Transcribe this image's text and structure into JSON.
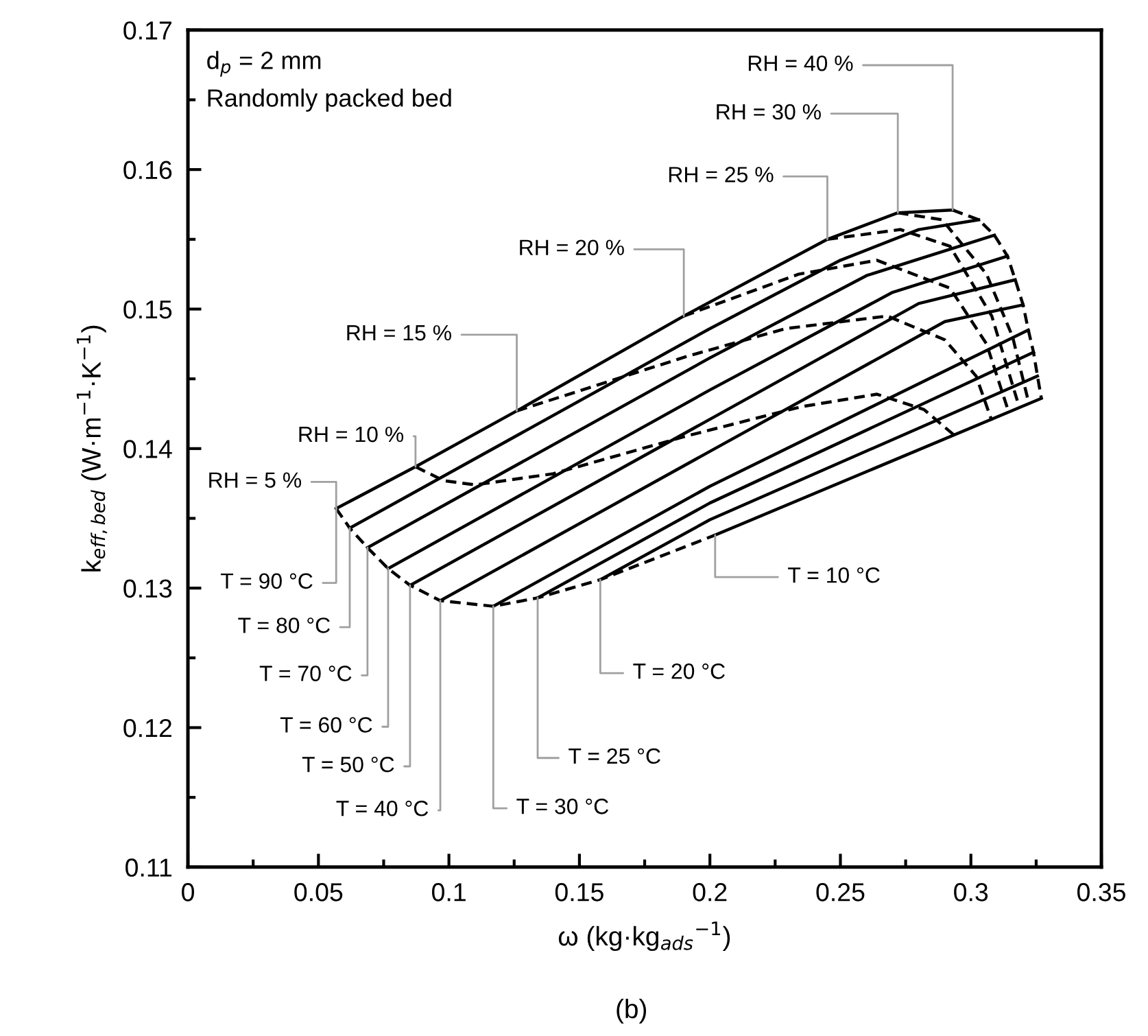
{
  "chart_data": {
    "type": "line",
    "xlabel": "ω (kg·kg$_{ads}$$^{−1}$)",
    "ylabel": "k$_{eff,bed}$ (W·m$^{−1}$·K$^{−1}$)",
    "annotations": [
      "d$_{p}$ = 2 mm",
      "Randomly packed bed",
      "(b)"
    ],
    "xlim": [
      0,
      0.35
    ],
    "xticks": [
      0,
      0.05,
      0.1,
      0.15,
      0.2,
      0.25,
      0.3,
      0.35
    ],
    "ylim": [
      0.11,
      0.17
    ],
    "yticks": [
      0.11,
      0.12,
      0.13,
      0.14,
      0.15,
      0.16,
      0.17
    ],
    "grid": false,
    "legend": false,
    "marker": "none",
    "series": [
      {
        "name": "T = 90 °C",
        "color": "#000000",
        "line_style": "solid",
        "x": [
          0.0568,
          0.0872,
          0.126,
          0.19,
          0.245,
          0.272,
          0.293
        ],
        "values": [
          0.1357,
          0.1387,
          0.1427,
          0.1495,
          0.155,
          0.1569,
          0.1571
        ]
      },
      {
        "name": "T = 80 °C",
        "color": "#000000",
        "line_style": "solid",
        "x": [
          0.062,
          0.2,
          0.25,
          0.28,
          0.303
        ],
        "values": [
          0.1343,
          0.1486,
          0.1535,
          0.1557,
          0.1564
        ]
      },
      {
        "name": "T = 70 °C",
        "color": "#000000",
        "line_style": "solid",
        "x": [
          0.0688,
          0.2,
          0.26,
          0.309
        ],
        "values": [
          0.1329,
          0.1465,
          0.1524,
          0.1553
        ]
      },
      {
        "name": "T = 60 °C",
        "color": "#000000",
        "line_style": "solid",
        "x": [
          0.0767,
          0.2,
          0.27,
          0.314
        ],
        "values": [
          0.1314,
          0.1442,
          0.1512,
          0.1538
        ]
      },
      {
        "name": "T = 50 °C",
        "color": "#000000",
        "line_style": "solid",
        "x": [
          0.0851,
          0.2,
          0.28,
          0.317
        ],
        "values": [
          0.1302,
          0.1421,
          0.1504,
          0.1521
        ]
      },
      {
        "name": "T = 40 °C",
        "color": "#000000",
        "line_style": "solid",
        "x": [
          0.0967,
          0.2,
          0.29,
          0.32
        ],
        "values": [
          0.1291,
          0.1398,
          0.1491,
          0.1503
        ]
      },
      {
        "name": "T = 30 °C",
        "color": "#000000",
        "line_style": "solid",
        "x": [
          0.117,
          0.2,
          0.322
        ],
        "values": [
          0.1287,
          0.1373,
          0.1485
        ]
      },
      {
        "name": "T = 25 °C",
        "color": "#000000",
        "line_style": "solid",
        "x": [
          0.134,
          0.2,
          0.324
        ],
        "values": [
          0.1293,
          0.1361,
          0.1469
        ]
      },
      {
        "name": "T = 20 °C",
        "color": "#000000",
        "line_style": "solid",
        "x": [
          0.158,
          0.2,
          0.3255
        ],
        "values": [
          0.1306,
          0.1349,
          0.1452
        ]
      },
      {
        "name": "T = 10 °C",
        "color": "#000000",
        "line_style": "solid",
        "x": [
          0.202,
          0.327
        ],
        "values": [
          0.1338,
          0.1436
        ]
      },
      {
        "name": "RH = 5 %",
        "color": "#000000",
        "line_style": "dashed",
        "x": [
          0.0568,
          0.062,
          0.0688,
          0.0767,
          0.0851,
          0.0967,
          0.117,
          0.134,
          0.158,
          0.202
        ],
        "values": [
          0.1357,
          0.1343,
          0.1329,
          0.1314,
          0.1302,
          0.1291,
          0.1287,
          0.1293,
          0.1306,
          0.1338
        ]
      },
      {
        "name": "RH = 10 %",
        "color": "#000000",
        "line_style": "dashed",
        "x": [
          0.0872,
          0.098,
          0.11,
          0.14,
          0.191,
          0.235,
          0.264,
          0.282,
          0.294
        ],
        "values": [
          0.1387,
          0.1377,
          0.1374,
          0.1382,
          0.1409,
          0.143,
          0.1439,
          0.1428,
          0.1409
        ]
      },
      {
        "name": "RH = 15 %",
        "color": "#000000",
        "line_style": "dashed",
        "x": [
          0.126,
          0.191,
          0.229,
          0.268,
          0.29,
          0.302,
          0.308
        ],
        "values": [
          0.1427,
          0.1466,
          0.1486,
          0.1495,
          0.1478,
          0.1452,
          0.142
        ]
      },
      {
        "name": "RH = 20 %",
        "color": "#000000",
        "line_style": "dashed",
        "x": [
          0.19,
          0.234,
          0.264,
          0.292,
          0.306,
          0.314
        ],
        "values": [
          0.1495,
          0.1525,
          0.1535,
          0.1515,
          0.1475,
          0.1429
        ]
      },
      {
        "name": "RH = 25 %",
        "color": "#000000",
        "line_style": "dashed",
        "x": [
          0.245,
          0.273,
          0.292,
          0.308,
          0.318
        ],
        "values": [
          0.155,
          0.1557,
          0.1545,
          0.1495,
          0.1433
        ]
      },
      {
        "name": "RH = 30 %",
        "color": "#000000",
        "line_style": "dashed",
        "x": [
          0.272,
          0.289,
          0.306,
          0.316,
          0.322
        ],
        "values": [
          0.1569,
          0.1564,
          0.1525,
          0.148,
          0.1434
        ]
      },
      {
        "name": "RH = 40 %",
        "color": "#000000",
        "line_style": "dashed",
        "x": [
          0.293,
          0.303,
          0.309,
          0.314,
          0.317,
          0.32,
          0.322,
          0.324,
          0.3255,
          0.327
        ],
        "values": [
          0.1571,
          0.1564,
          0.1553,
          0.1538,
          0.1521,
          0.1503,
          0.1485,
          0.1469,
          0.1452,
          0.1436
        ]
      }
    ]
  }
}
